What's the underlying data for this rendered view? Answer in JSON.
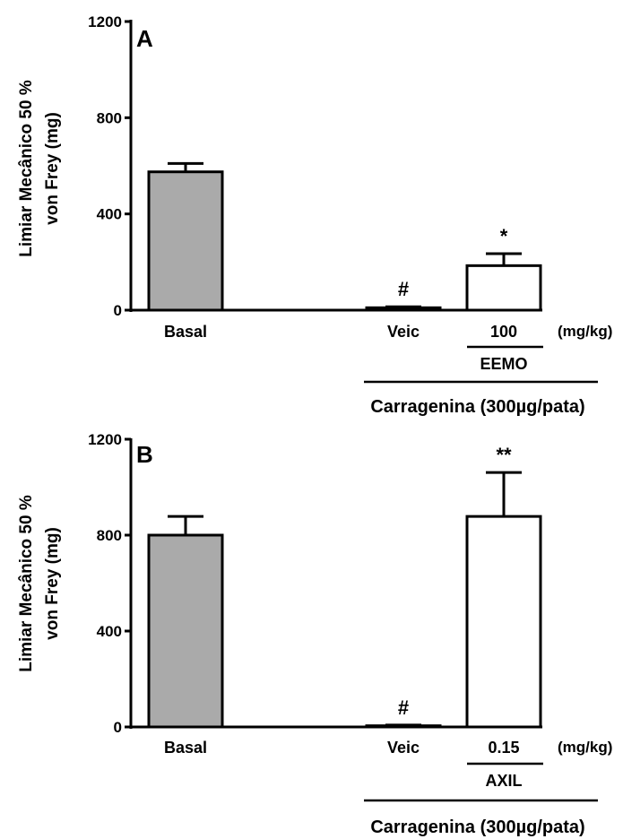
{
  "chart_data": [
    {
      "type": "bar",
      "panel_label": "A",
      "ylabel_line1": "Limiar Mecânico 50 %",
      "ylabel_line2": "von Frey (mg)",
      "ylim": [
        0,
        1200
      ],
      "yticks": [
        "0",
        "400",
        "800",
        "1200"
      ],
      "categories": [
        "Basal",
        "Veic",
        "100"
      ],
      "values": [
        575,
        10,
        185
      ],
      "errors": [
        35,
        4,
        50
      ],
      "bar_fills": [
        "#aaaaaa",
        "#ffffff",
        "#ffffff"
      ],
      "significance": [
        "",
        "#",
        "*"
      ],
      "unit_label": "(mg/kg)",
      "group_label": "EEMO",
      "treatment_label": "Carragenina (300µg/pata)"
    },
    {
      "type": "bar",
      "panel_label": "B",
      "ylabel_line1": "Limiar Mecânico 50 %",
      "ylabel_line2": "von Frey (mg)",
      "ylim": [
        0,
        1200
      ],
      "yticks": [
        "0",
        "400",
        "800",
        "1200"
      ],
      "categories": [
        "Basal",
        "Veic",
        "0.15"
      ],
      "values": [
        800,
        5,
        878
      ],
      "errors": [
        78,
        3,
        183
      ],
      "bar_fills": [
        "#aaaaaa",
        "#ffffff",
        "#ffffff"
      ],
      "significance": [
        "",
        "#",
        "**"
      ],
      "unit_label": "(mg/kg)",
      "group_label": "AXIL",
      "treatment_label": "Carragenina (300µg/pata)"
    }
  ]
}
